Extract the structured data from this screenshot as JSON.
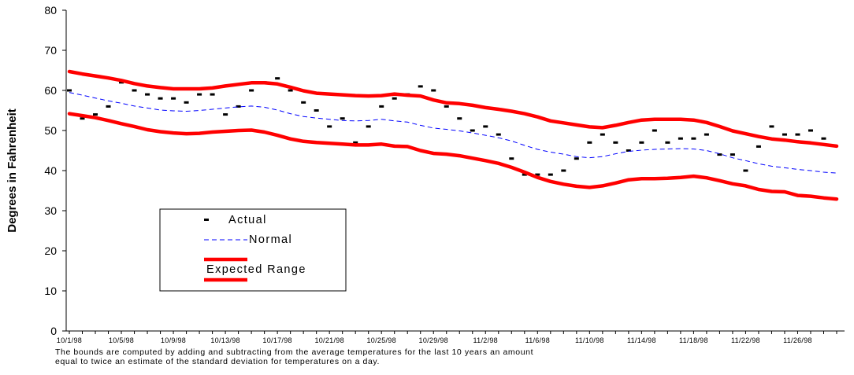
{
  "chart_data": {
    "type": "line",
    "ylabel": "Degrees in Fahrenheit",
    "xlabel": "",
    "title": "",
    "ylim": [
      0,
      80
    ],
    "yticks": [
      0,
      10,
      20,
      30,
      40,
      50,
      60,
      70,
      80
    ],
    "x_start": "10/1/98",
    "x_end": "11/29/98",
    "xtick_labels": [
      "10/1/98",
      "10/5/98",
      "10/9/98",
      "10/13/98",
      "10/17/98",
      "10/21/98",
      "10/25/98",
      "10/29/98",
      "11/2/98",
      "11/6/98",
      "11/10/98",
      "11/14/98",
      "11/18/98",
      "11/22/98",
      "11/26/98"
    ],
    "legend": {
      "placement": "lower-left",
      "entries": [
        "Actual",
        "Normal",
        "Expected Range"
      ]
    },
    "series": [
      {
        "name": "Actual",
        "style": "dash-markers",
        "color": "#000000",
        "values": [
          60,
          53,
          54,
          56,
          62,
          60,
          59,
          58,
          58,
          57,
          59,
          59,
          54,
          56,
          60,
          62,
          63,
          60,
          57,
          55,
          51,
          53,
          47,
          51,
          56,
          58,
          59,
          61,
          60,
          56,
          53,
          50,
          51,
          49,
          43,
          39,
          39,
          39,
          40,
          43,
          47,
          49,
          47,
          45,
          47,
          50,
          47,
          48,
          48,
          49,
          44,
          44,
          40,
          46,
          51,
          49,
          49,
          50,
          48
        ]
      },
      {
        "name": "Normal",
        "style": "dashed-line",
        "color": "#0000ff",
        "values": [
          59.5,
          58.8,
          58.1,
          57.4,
          56.8,
          56.1,
          55.6,
          55.1,
          54.9,
          54.8,
          55.0,
          55.3,
          55.6,
          55.9,
          56.1,
          55.8,
          55.1,
          54.2,
          53.5,
          53.1,
          52.8,
          52.5,
          52.4,
          52.5,
          52.8,
          52.4,
          52.1,
          51.3,
          50.6,
          50.3,
          49.9,
          49.4,
          48.8,
          48.2,
          47.4,
          46.3,
          45.3,
          44.6,
          44.1,
          43.5,
          43.2,
          43.5,
          44.2,
          44.8,
          45.1,
          45.3,
          45.4,
          45.5,
          45.4,
          45.0,
          44.2,
          43.2,
          42.5,
          41.7,
          41.1,
          40.7,
          40.3,
          40.0,
          39.6,
          39.4
        ]
      },
      {
        "name": "Expected Range",
        "subname": "upper",
        "style": "thick-line",
        "color": "#ff0000",
        "values": [
          64.7,
          64.1,
          63.6,
          63.1,
          62.5,
          61.7,
          61.1,
          60.7,
          60.4,
          60.4,
          60.4,
          60.6,
          61.1,
          61.5,
          61.9,
          61.9,
          61.6,
          60.8,
          59.9,
          59.3,
          59.1,
          58.9,
          58.7,
          58.6,
          58.7,
          59.1,
          58.8,
          58.6,
          57.6,
          56.9,
          56.7,
          56.3,
          55.7,
          55.3,
          54.8,
          54.2,
          53.4,
          52.4,
          51.9,
          51.4,
          50.9,
          50.7,
          51.3,
          52.0,
          52.6,
          52.8,
          52.8,
          52.8,
          52.6,
          52.0,
          51.0,
          49.9,
          49.2,
          48.5,
          47.9,
          47.6,
          47.2,
          46.9,
          46.5,
          46.1
        ]
      },
      {
        "name": "Expected Range",
        "subname": "lower",
        "style": "thick-line",
        "color": "#ff0000",
        "values": [
          54.2,
          53.7,
          53.2,
          52.5,
          51.7,
          51.0,
          50.2,
          49.7,
          49.4,
          49.2,
          49.3,
          49.6,
          49.8,
          50.0,
          50.1,
          49.6,
          48.8,
          47.9,
          47.3,
          47.0,
          46.8,
          46.6,
          46.4,
          46.4,
          46.6,
          46.1,
          46.0,
          45.0,
          44.3,
          44.1,
          43.7,
          43.1,
          42.5,
          41.8,
          40.8,
          39.6,
          38.3,
          37.3,
          36.6,
          36.1,
          35.8,
          36.2,
          36.9,
          37.7,
          38.0,
          38.0,
          38.1,
          38.3,
          38.6,
          38.2,
          37.5,
          36.7,
          36.2,
          35.3,
          34.8,
          34.7,
          33.8,
          33.6,
          33.2,
          32.9
        ]
      }
    ],
    "footnote": [
      "The bounds are computed by adding and subtracting from the average temperatures for the last 10 years an amount",
      "equal to twice an estimate of the standard deviation for temperatures on a day."
    ]
  }
}
